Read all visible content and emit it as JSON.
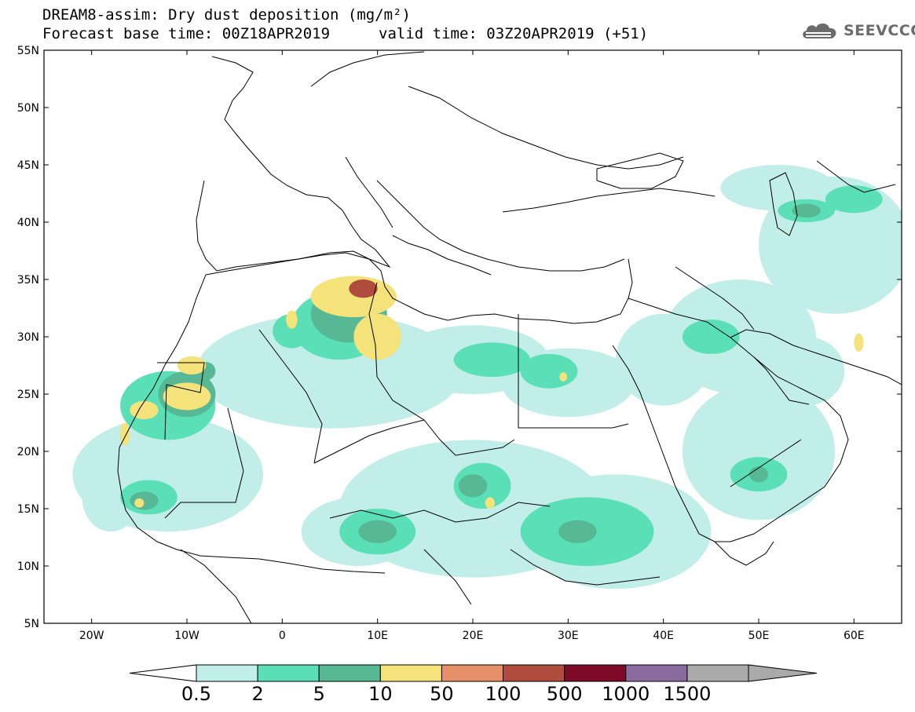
{
  "title": {
    "line1": "DREAM8-assim: Dry dust deposition (mg/m²)",
    "forecast_base": "Forecast base time: 00Z18APR2019",
    "valid": "valid time: 03Z20APR2019 (+51)"
  },
  "logo": {
    "icon": "cloud-icon",
    "text": "SEEVCCC"
  },
  "map": {
    "lat_labels": [
      "55N",
      "50N",
      "45N",
      "40N",
      "35N",
      "30N",
      "25N",
      "20N",
      "15N",
      "10N",
      "5N"
    ],
    "lon_labels": [
      "20W",
      "10W",
      "0",
      "10E",
      "20E",
      "30E",
      "40E",
      "50E",
      "60E"
    ],
    "lon_range": [
      -25,
      65
    ],
    "lat_range": [
      5,
      55
    ],
    "land_outline_color": "#000000"
  },
  "legend": {
    "levels": [
      "0.5",
      "2",
      "5",
      "10",
      "50",
      "100",
      "500",
      "1000",
      "1500"
    ],
    "colors": [
      "#c1eee8",
      "#5bdfb6",
      "#56b894",
      "#f4e27a",
      "#e8906a",
      "#b04c3e",
      "#7d0b27",
      "#8a6a9f",
      "#aaaaaa"
    ],
    "under_color": "#ffffff",
    "over_color": "#aaaaaa"
  },
  "chart_data": {
    "type": "heatmap",
    "title": "DREAM8-assim: Dry dust deposition (mg/m²)",
    "variable": "Dry dust deposition",
    "unit": "mg/m²",
    "x_range": [
      -25,
      65
    ],
    "y_range": [
      5,
      55
    ],
    "level_bounds": [
      0.5,
      2,
      5,
      10,
      50,
      100,
      500,
      1000,
      1500
    ],
    "regions": [
      {
        "lon": 7.5,
        "lat": 33.5,
        "rx": 4.5,
        "ry": 1.8,
        "level": 10
      },
      {
        "lon": 8.5,
        "lat": 34.2,
        "rx": 1.5,
        "ry": 0.8,
        "level": 100
      },
      {
        "lon": 10,
        "lat": 30,
        "rx": 2.5,
        "ry": 2,
        "level": 10
      },
      {
        "lon": -9.5,
        "lat": 27.5,
        "rx": 1.5,
        "ry": 0.8,
        "level": 10
      },
      {
        "lon": -10,
        "lat": 24.8,
        "rx": 2.5,
        "ry": 1.2,
        "level": 10
      },
      {
        "lon": -14.5,
        "lat": 23.6,
        "rx": 1.5,
        "ry": 0.8,
        "level": 10
      },
      {
        "lon": -16.5,
        "lat": 21.5,
        "rx": 0.5,
        "ry": 1,
        "level": 10
      },
      {
        "lon": 21.8,
        "lat": 15.5,
        "rx": 0.5,
        "ry": 0.5,
        "level": 10
      },
      {
        "lon": 29.5,
        "lat": 26.5,
        "rx": 0.4,
        "ry": 0.4,
        "level": 10
      },
      {
        "lon": 1,
        "lat": 31.5,
        "rx": 0.6,
        "ry": 0.8,
        "level": 10
      },
      {
        "lon": -15,
        "lat": 15.5,
        "rx": 0.5,
        "ry": 0.4,
        "level": 10
      },
      {
        "lon": 60.5,
        "lat": 29.5,
        "rx": 0.5,
        "ry": 0.8,
        "level": 10
      }
    ]
  }
}
